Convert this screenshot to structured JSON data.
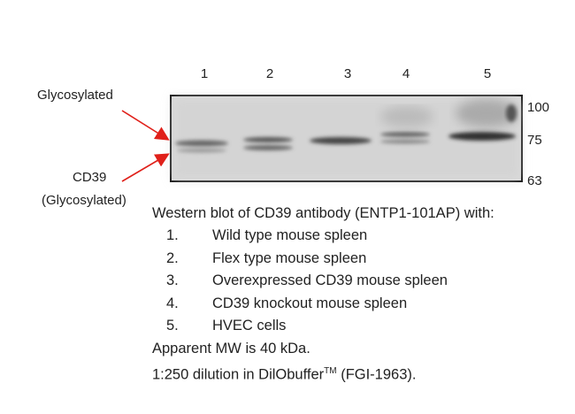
{
  "blot": {
    "lanes": [
      "1",
      "2",
      "3",
      "4",
      "5"
    ],
    "markers": [
      "100",
      "75",
      "63"
    ],
    "arrow_labels": {
      "upper": "Glycosylated",
      "lower": [
        "CD39",
        "(Glycosylated)"
      ]
    }
  },
  "caption": {
    "title": "Western blot of CD39 antibody (ENTP1-101AP) with:",
    "items": [
      {
        "number": "1.",
        "text": "Wild type mouse spleen"
      },
      {
        "number": "2.",
        "text": "Flex type mouse spleen"
      },
      {
        "number": "3.",
        "text": "Overexpressed CD39 mouse spleen"
      },
      {
        "number": "4.",
        "text": "CD39 knockout mouse spleen"
      },
      {
        "number": "5.",
        "text": "HVEC cells"
      }
    ],
    "mw": "Apparent MW is 40 kDa.",
    "dilution": {
      "text": "1:250 dilution in DilObuffer",
      "superscript": "TM",
      "suffix": " (FGI-1963)."
    }
  }
}
